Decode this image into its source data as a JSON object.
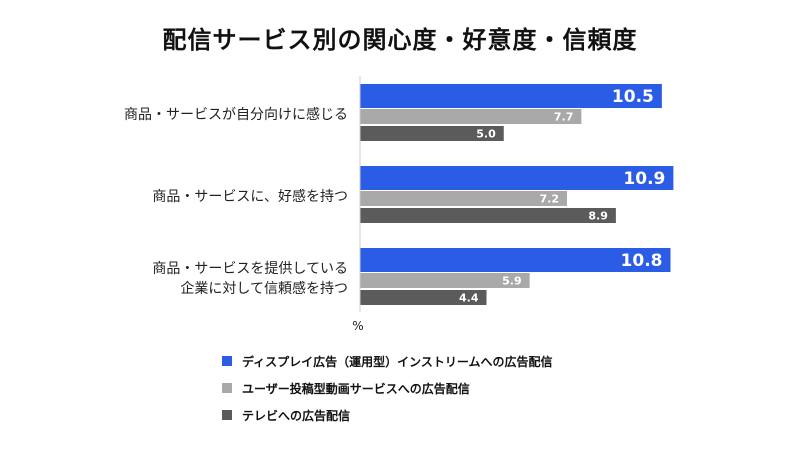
{
  "chart_data": {
    "type": "bar",
    "orientation": "horizontal",
    "title": "配信サービス別の関心度・好意度・信頼度",
    "unit_label": "%",
    "categories": [
      [
        "商品・サービスが自分向けに感じる"
      ],
      [
        "商品・サービスに、好感を持つ"
      ],
      [
        "商品・サービスを提供している",
        "企業に対して信頼感を持つ"
      ]
    ],
    "series": [
      {
        "name": "ディスプレイ広告（運用型）インストリームへの広告配信",
        "color": "#2b5ce6",
        "values": [
          10.5,
          10.9,
          10.8
        ]
      },
      {
        "name": "ユーザー投稿型動画サービスへの広告配信",
        "color": "#a9a9a9",
        "values": [
          7.7,
          7.2,
          5.9
        ]
      },
      {
        "name": "テレビへの広告配信",
        "color": "#5b5b5b",
        "values": [
          5.0,
          8.9,
          4.4
        ]
      }
    ],
    "xlim": [
      0,
      11
    ],
    "legend_position": "bottom"
  }
}
